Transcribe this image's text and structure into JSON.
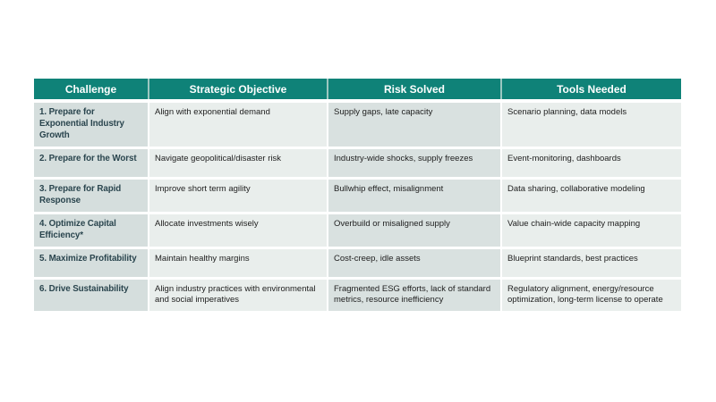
{
  "page": {
    "background_color": "#ffffff"
  },
  "table": {
    "colors": {
      "header_bg": "#0f8278",
      "header_text": "#ffffff",
      "header_separator": "#9cc7c1",
      "challenge_column_bg": "#d5dedd",
      "risk_column_bg": "#d9e1e0",
      "light_column_bg": "#e9eeec",
      "challenge_text": "#2a454e",
      "body_text": "#212121"
    },
    "columns": [
      {
        "label": "Challenge"
      },
      {
        "label": "Strategic Objective"
      },
      {
        "label": "Risk Solved"
      },
      {
        "label": "Tools Needed"
      }
    ],
    "rows": [
      {
        "challenge": "1. Prepare for Exponential Industry Growth",
        "objective": "Align with exponential demand",
        "risk": "Supply gaps, late capacity",
        "tools": "Scenario planning, data models"
      },
      {
        "challenge": "2. Prepare for the Worst",
        "objective": "Navigate geopolitical/disaster risk",
        "risk": "Industry-wide shocks, supply freezes",
        "tools": "Event-monitoring, dashboards"
      },
      {
        "challenge": "3. Prepare for Rapid Response",
        "objective": "Improve short term agility",
        "risk": "Bullwhip effect, misalignment",
        "tools": "Data sharing, collaborative modeling"
      },
      {
        "challenge": "4. Optimize Capital Efficiency*",
        "objective": "Allocate investments wisely",
        "risk": "Overbuild or misaligned supply",
        "tools": "Value chain-wide capacity mapping"
      },
      {
        "challenge": "5. Maximize Profitability",
        "objective": "Maintain healthy margins",
        "risk": "Cost-creep, idle assets",
        "tools": "Blueprint standards, best practices"
      },
      {
        "challenge": "6. Drive Sustainability",
        "objective": "Align industry practices with environmental and social imperatives",
        "risk": "Fragmented ESG efforts, lack of standard metrics, resource inefficiency",
        "tools": "Regulatory alignment, energy/resource optimization, long-term license to operate"
      }
    ]
  }
}
